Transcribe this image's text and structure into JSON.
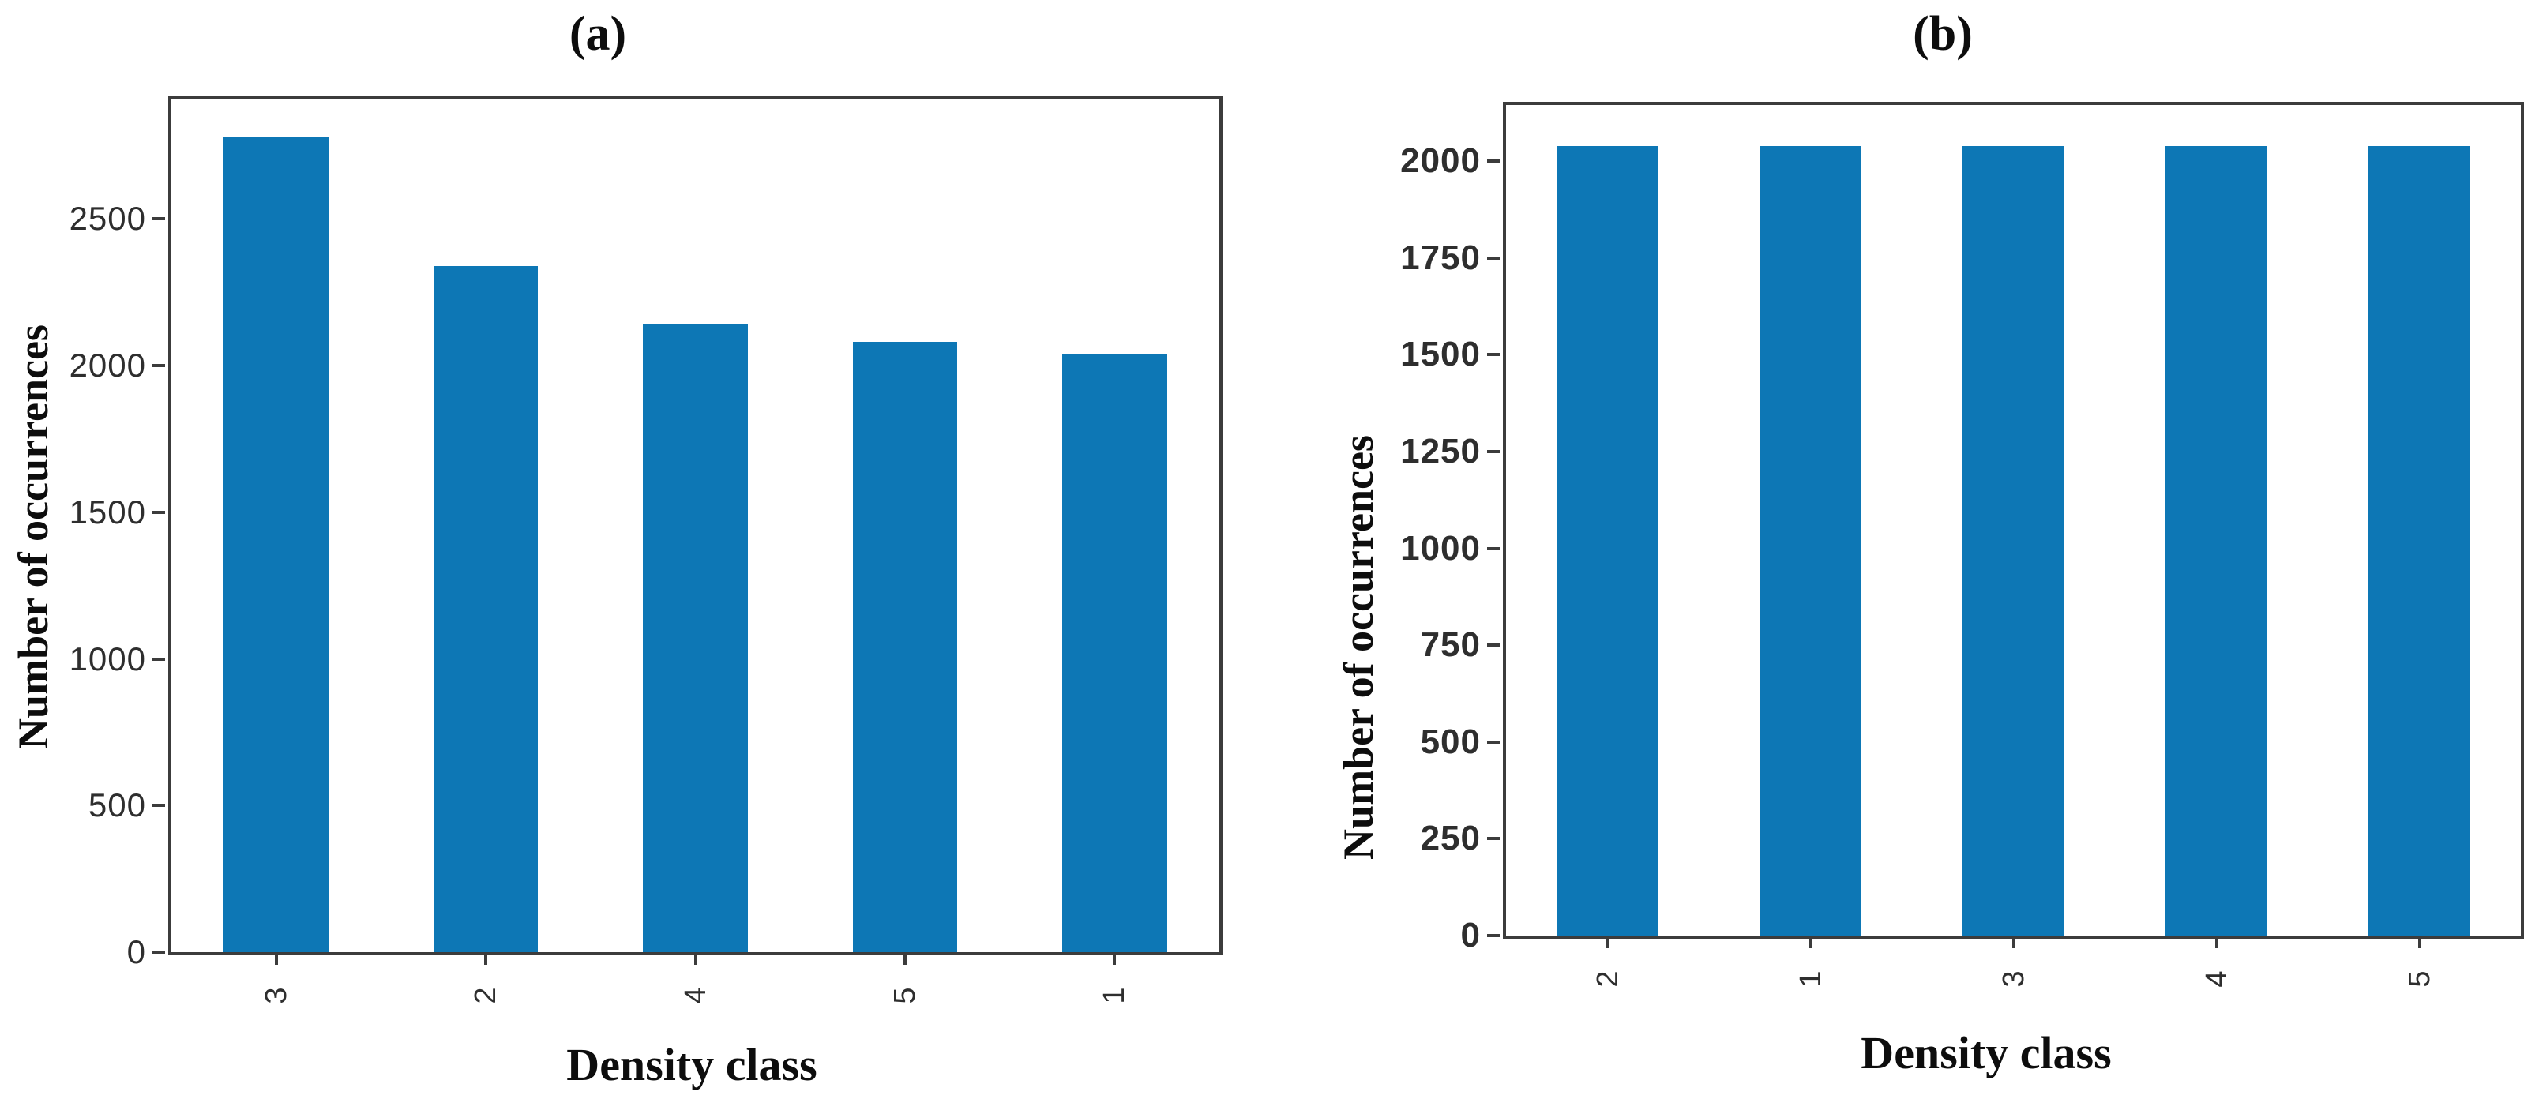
{
  "figure": {
    "background": "#ffffff",
    "frame_color": "#3c3c3c",
    "tick_color": "#2e2e2e",
    "text_color": "#0d0d0d"
  },
  "chart_data": [
    {
      "type": "bar",
      "title": "(a)",
      "xlabel": "Density class",
      "ylabel": "Number of occurrences",
      "categories": [
        "3",
        "2",
        "4",
        "5",
        "1"
      ],
      "values": [
        2780,
        2340,
        2140,
        2080,
        2040
      ],
      "yticks": [
        0,
        500,
        1000,
        1500,
        2000,
        2500
      ],
      "ylim": [
        0,
        2910
      ],
      "bar_color": "#0d77b5",
      "tick_label_rotation": 90,
      "grid": false,
      "legend": "none"
    },
    {
      "type": "bar",
      "title": "(b)",
      "xlabel": "Density class",
      "ylabel": "Number of occurrences",
      "categories": [
        "2",
        "1",
        "3",
        "4",
        "5"
      ],
      "values": [
        2040,
        2040,
        2040,
        2040,
        2040
      ],
      "yticks": [
        0,
        250,
        500,
        750,
        1000,
        1250,
        1500,
        1750,
        2000
      ],
      "ylim": [
        0,
        2145
      ],
      "bar_color": "#0d77b5",
      "tick_label_rotation": 90,
      "grid": false,
      "legend": "none"
    }
  ]
}
